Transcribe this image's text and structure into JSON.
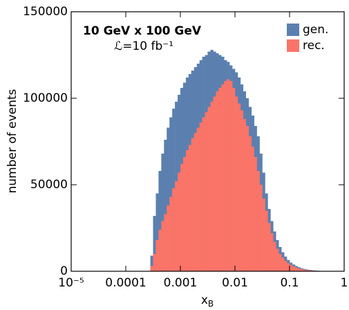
{
  "chart_data": {
    "type": "histogram",
    "annotations": [
      "10 GeV x 100 GeV",
      "ℒ=10 fb⁻¹"
    ],
    "xlabel": {
      "text": "x",
      "subscript": "B"
    },
    "ylabel": "number of events",
    "xscale": "log",
    "xlim": [
      1e-05,
      1
    ],
    "xticks": [
      {
        "value": 1e-05,
        "label": "10⁻⁵"
      },
      0.0001,
      0.001,
      0.01,
      0.1,
      1
    ],
    "ylim": [
      0,
      150000
    ],
    "yticks": [
      0,
      50000,
      100000,
      150000
    ],
    "legend": "upper right",
    "bins": [
      0.000251,
      0.000282,
      0.000316,
      0.000355,
      0.000398,
      0.000447,
      0.000501,
      0.000562,
      0.000631,
      0.000708,
      0.000794,
      0.000891,
      0.001,
      0.00112,
      0.00126,
      0.00141,
      0.00158,
      0.00178,
      0.002,
      0.00224,
      0.00251,
      0.00282,
      0.00316,
      0.00355,
      0.00398,
      0.00447,
      0.00501,
      0.00562,
      0.00631,
      0.00708,
      0.00794,
      0.00891,
      0.01,
      0.0112,
      0.0126,
      0.0141,
      0.0158,
      0.0178,
      0.02,
      0.0224,
      0.0251,
      0.0282,
      0.0316,
      0.0355,
      0.0398,
      0.0447,
      0.0501,
      0.0562,
      0.0631,
      0.0708,
      0.0794,
      0.0891,
      0.1,
      0.112,
      0.126,
      0.141,
      0.158,
      0.178,
      0.2,
      0.224,
      0.251,
      0.282,
      0.316,
      0.355,
      0.398,
      0.447,
      0.501,
      0.562,
      0.631,
      0.708,
      0.794,
      0.891,
      1
    ],
    "series": [
      {
        "name": "gen.",
        "color": "#5b80b0",
        "values": [
          0,
          9000,
          32000,
          45000,
          58000,
          68000,
          76000,
          83000,
          89000,
          94000,
          98000,
          102000,
          106000,
          109000,
          112000,
          114000,
          116000,
          118000,
          120000,
          122000,
          124000,
          125000,
          127000,
          128000,
          127000,
          126000,
          125000,
          124000,
          122000,
          121000,
          119000,
          117000,
          115000,
          112000,
          108000,
          104000,
          100000,
          95000,
          90000,
          84000,
          78000,
          68000,
          57000,
          45000,
          36000,
          29000,
          23000,
          18000,
          14000,
          11000,
          8500,
          6500,
          5000,
          3900,
          3000,
          2300,
          1700,
          1300,
          1000,
          750,
          550,
          400,
          300,
          200,
          150,
          100,
          70,
          50,
          30,
          20,
          10,
          0
        ]
      },
      {
        "name": "rec.",
        "color": "#fa7468",
        "values": [
          0,
          3000,
          10000,
          18000,
          24000,
          29000,
          33000,
          38000,
          43000,
          48000,
          52000,
          57000,
          62000,
          66000,
          70000,
          73000,
          77000,
          80000,
          83000,
          86000,
          89000,
          92000,
          95000,
          98000,
          101000,
          104000,
          106000,
          108000,
          110000,
          111000,
          110000,
          106000,
          101000,
          97000,
          93000,
          88000,
          84000,
          78000,
          72000,
          66000,
          58000,
          50000,
          42000,
          35000,
          28000,
          22000,
          17000,
          13000,
          10000,
          8000,
          6000,
          4700,
          3600,
          2800,
          2100,
          1600,
          1200,
          900,
          650,
          480,
          350,
          250,
          180,
          120,
          80,
          50,
          30,
          20,
          10,
          5,
          0,
          0
        ]
      }
    ]
  }
}
